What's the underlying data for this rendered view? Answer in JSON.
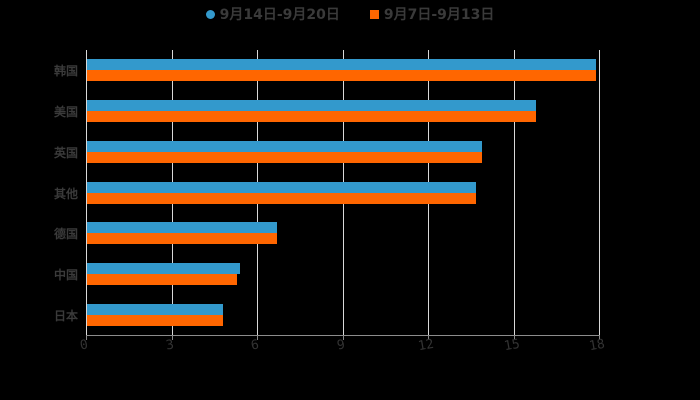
{
  "legend": [
    {
      "label": "9月14日-9月20日",
      "color": "#3399cc",
      "shape": "circle"
    },
    {
      "label": "9月7日-9月13日",
      "color": "#ff6600",
      "shape": "square"
    }
  ],
  "chart_data": {
    "type": "bar",
    "orientation": "horizontal",
    "categories": [
      "韩国",
      "美国",
      "英国",
      "其他",
      "德国",
      "中国",
      "日本"
    ],
    "series": [
      {
        "name": "9月14日-9月20日",
        "color": "#3399cc",
        "values": [
          17.9,
          15.8,
          13.9,
          13.7,
          6.7,
          5.4,
          4.8
        ]
      },
      {
        "name": "9月7日-9月13日",
        "color": "#ff6600",
        "values": [
          17.9,
          15.8,
          13.9,
          13.7,
          6.7,
          5.3,
          4.8
        ]
      }
    ],
    "title": "",
    "xlabel": "",
    "ylabel": "",
    "xlim": [
      0,
      18
    ],
    "xticks": [
      "0",
      "3",
      "6",
      "9",
      "12",
      "15",
      "18"
    ],
    "grid": true,
    "legend_position": "top"
  }
}
